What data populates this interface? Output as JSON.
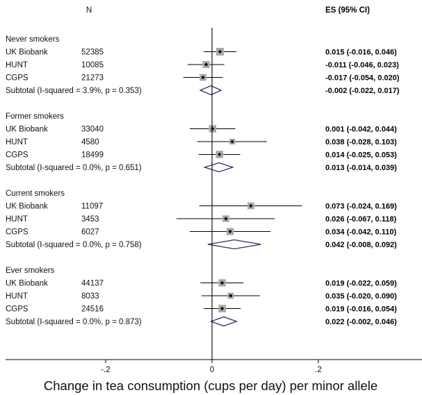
{
  "chart_data": {
    "type": "forest",
    "headers": {
      "n": "N",
      "es": "ES (95% CI)"
    },
    "xlabel": "Change in tea consumption (cups per day) per minor allele",
    "xlim": [
      -0.37,
      0.37
    ],
    "ticks": [
      {
        "value": -0.2,
        "label": "-.2"
      },
      {
        "value": 0,
        "label": "0"
      },
      {
        "value": 0.2,
        "label": ".2"
      }
    ],
    "groups": [
      {
        "name": "Never smokers",
        "studies": [
          {
            "label": "UK Biobank",
            "n": "52385",
            "es": 0.015,
            "lo": -0.016,
            "hi": 0.046,
            "ci_text": "0.015 (-0.016, 0.046)",
            "weight": 1.0
          },
          {
            "label": "HUNT",
            "n": "10085",
            "es": -0.011,
            "lo": -0.046,
            "hi": 0.023,
            "ci_text": "-0.011 (-0.046, 0.023)",
            "weight": 0.8
          },
          {
            "label": "CGPS",
            "n": "21273",
            "es": -0.017,
            "lo": -0.054,
            "hi": 0.02,
            "ci_text": "-0.017 (-0.054, 0.020)",
            "weight": 0.75
          }
        ],
        "subtotal": {
          "label": "Subtotal  (I-squared = 3.9%, p = 0.353)",
          "es": -0.002,
          "lo": -0.022,
          "hi": 0.017,
          "ci_text": "-0.002 (-0.022, 0.017)"
        }
      },
      {
        "name": "Former smokers",
        "studies": [
          {
            "label": "UK Biobank",
            "n": "33040",
            "es": 0.001,
            "lo": -0.042,
            "hi": 0.044,
            "ci_text": "0.001 (-0.042, 0.044)",
            "weight": 0.9
          },
          {
            "label": "HUNT",
            "n": "4580",
            "es": 0.038,
            "lo": -0.028,
            "hi": 0.103,
            "ci_text": "0.038 (-0.028, 0.103)",
            "weight": 0.45
          },
          {
            "label": "CGPS",
            "n": "18499",
            "es": 0.014,
            "lo": -0.025,
            "hi": 0.053,
            "ci_text": "0.014 (-0.025, 0.053)",
            "weight": 0.9
          }
        ],
        "subtotal": {
          "label": "Subtotal  (I-squared = 0.0%, p = 0.651)",
          "es": 0.013,
          "lo": -0.014,
          "hi": 0.039,
          "ci_text": "0.013 (-0.014, 0.039)"
        }
      },
      {
        "name": "Current smokers",
        "studies": [
          {
            "label": "UK Biobank",
            "n": "11097",
            "es": 0.073,
            "lo": -0.024,
            "hi": 0.169,
            "ci_text": "0.073 (-0.024, 0.169)",
            "weight": 0.75
          },
          {
            "label": "HUNT",
            "n": "3453",
            "es": 0.026,
            "lo": -0.067,
            "hi": 0.118,
            "ci_text": "0.026 (-0.067, 0.118)",
            "weight": 0.7
          },
          {
            "label": "CGPS",
            "n": "6027",
            "es": 0.034,
            "lo": -0.042,
            "hi": 0.11,
            "ci_text": "0.034 (-0.042, 0.110)",
            "weight": 0.85
          }
        ],
        "subtotal": {
          "label": "Subtotal  (I-squared = 0.0%, p = 0.758)",
          "es": 0.042,
          "lo": -0.008,
          "hi": 0.092,
          "ci_text": "0.042 (-0.008, 0.092)"
        }
      },
      {
        "name": "Ever smokers",
        "studies": [
          {
            "label": "UK Biobank",
            "n": "44137",
            "es": 0.019,
            "lo": -0.022,
            "hi": 0.059,
            "ci_text": "0.019 (-0.022, 0.059)",
            "weight": 0.9
          },
          {
            "label": "HUNT",
            "n": "8033",
            "es": 0.035,
            "lo": -0.02,
            "hi": 0.09,
            "ci_text": "0.035 (-0.020, 0.090)",
            "weight": 0.55
          },
          {
            "label": "CGPS",
            "n": "24516",
            "es": 0.019,
            "lo": -0.016,
            "hi": 0.054,
            "ci_text": "0.019 (-0.016, 0.054)",
            "weight": 0.95
          }
        ],
        "subtotal": {
          "label": "Subtotal  (I-squared = 0.0%, p = 0.873)",
          "es": 0.022,
          "lo": -0.002,
          "hi": 0.046,
          "ci_text": "0.022 (-0.002, 0.046)"
        }
      }
    ],
    "colors": {
      "diamond": "#2e2e6e",
      "box": "#a8a8a8",
      "line": "#000000"
    }
  }
}
